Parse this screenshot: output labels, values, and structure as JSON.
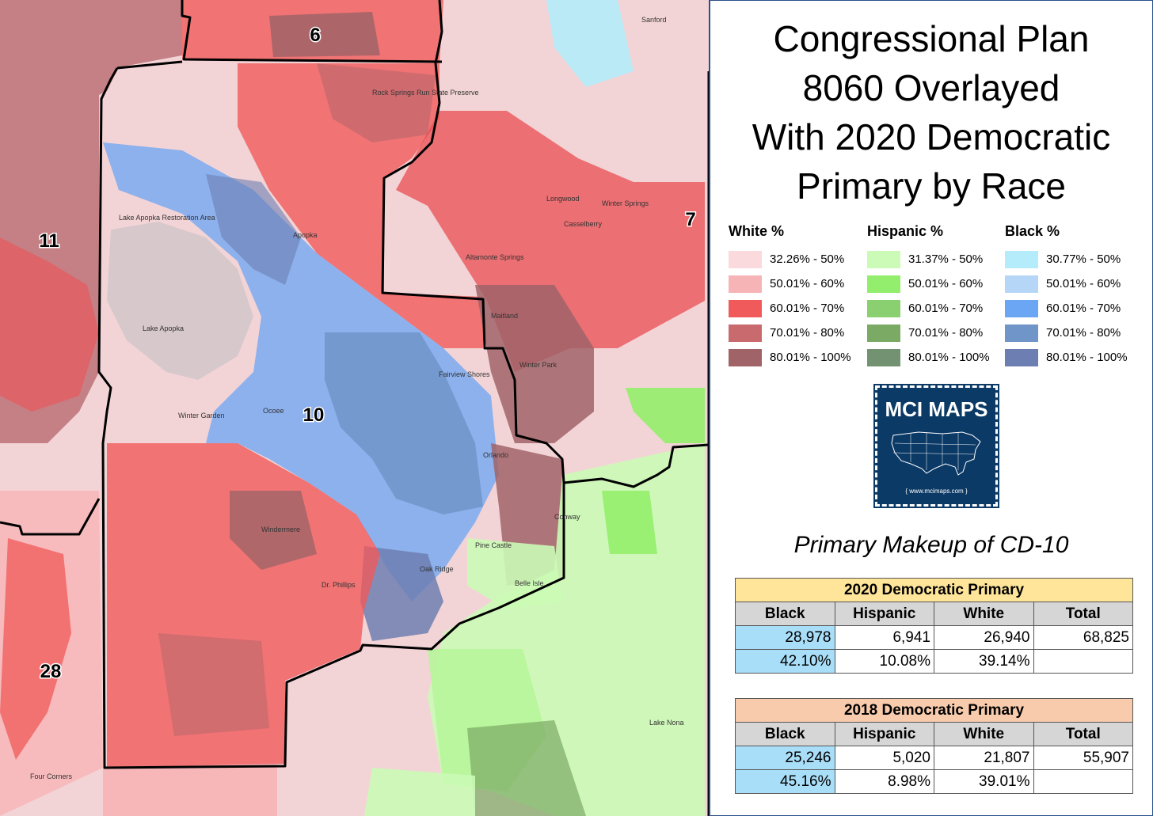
{
  "title": [
    "Congressional Plan",
    "8060 Overlayed",
    "With 2020 Democratic",
    "Primary by Race"
  ],
  "legend": [
    {
      "heading": "White %",
      "items": [
        {
          "label": "32.26% - 50%",
          "color": "#fadadd"
        },
        {
          "label": "50.01% - 60%",
          "color": "#f7b4b6"
        },
        {
          "label": "60.01% - 70%",
          "color": "#f05a5a"
        },
        {
          "label": "70.01% - 80%",
          "color": "#c96a6e"
        },
        {
          "label": "80.01% - 100%",
          "color": "#a06468"
        }
      ]
    },
    {
      "heading": "Hispanic %",
      "items": [
        {
          "label": "31.37% - 50%",
          "color": "#cbfbb6"
        },
        {
          "label": "50.01% - 60%",
          "color": "#92ee6c"
        },
        {
          "label": "60.01% - 70%",
          "color": "#8ad070"
        },
        {
          "label": "70.01% - 80%",
          "color": "#7aaa64"
        },
        {
          "label": "80.01% - 100%",
          "color": "#739271"
        }
      ]
    },
    {
      "heading": "Black %",
      "items": [
        {
          "label": "30.77% - 50%",
          "color": "#b5ecfb"
        },
        {
          "label": "50.01% - 60%",
          "color": "#b6d6f8"
        },
        {
          "label": "60.01% - 70%",
          "color": "#6aa6f4"
        },
        {
          "label": "70.01% - 80%",
          "color": "#6f95c9"
        },
        {
          "label": "80.01% - 100%",
          "color": "#6d7fb2"
        }
      ]
    }
  ],
  "logo": {
    "title": "MCI MAPS",
    "url": "{ www.mcimaps.com }"
  },
  "subtitle": "Primary Makeup of CD-10",
  "tables": [
    {
      "caption": "2020 Democratic Primary",
      "caption_color": "#ffe599",
      "columns": [
        "Black",
        "Hispanic",
        "White",
        "Total"
      ],
      "rows": [
        [
          "28,978",
          "6,941",
          "26,940",
          "68,825"
        ],
        [
          "42.10%",
          "10.08%",
          "39.14%",
          ""
        ]
      ]
    },
    {
      "caption": "2018 Democratic Primary",
      "caption_color": "#f8cbad",
      "columns": [
        "Black",
        "Hispanic",
        "White",
        "Total"
      ],
      "rows": [
        [
          "25,246",
          "5,020",
          "21,807",
          "55,907"
        ],
        [
          "45.16%",
          "8.98%",
          "39.01%",
          ""
        ]
      ]
    }
  ],
  "map": {
    "district_labels": [
      "6",
      "7",
      "10",
      "11",
      "28"
    ],
    "places": [
      "Lake Apopka Restoration Area",
      "Lake Apopka",
      "Rock Springs Run State Preserve",
      "Apopka",
      "Winter Garden",
      "Ocoee",
      "Orlando",
      "Winter Park",
      "Maitland",
      "Oak Ridge",
      "Pine Castle",
      "Dr. Phillips",
      "Windermere",
      "Longwood",
      "Casselberry",
      "Winter Springs",
      "Altamonte Springs",
      "Sanford",
      "Conway",
      "Four Corners",
      "Lake Nona",
      "Belle Isle",
      "Fairview Shores"
    ]
  }
}
